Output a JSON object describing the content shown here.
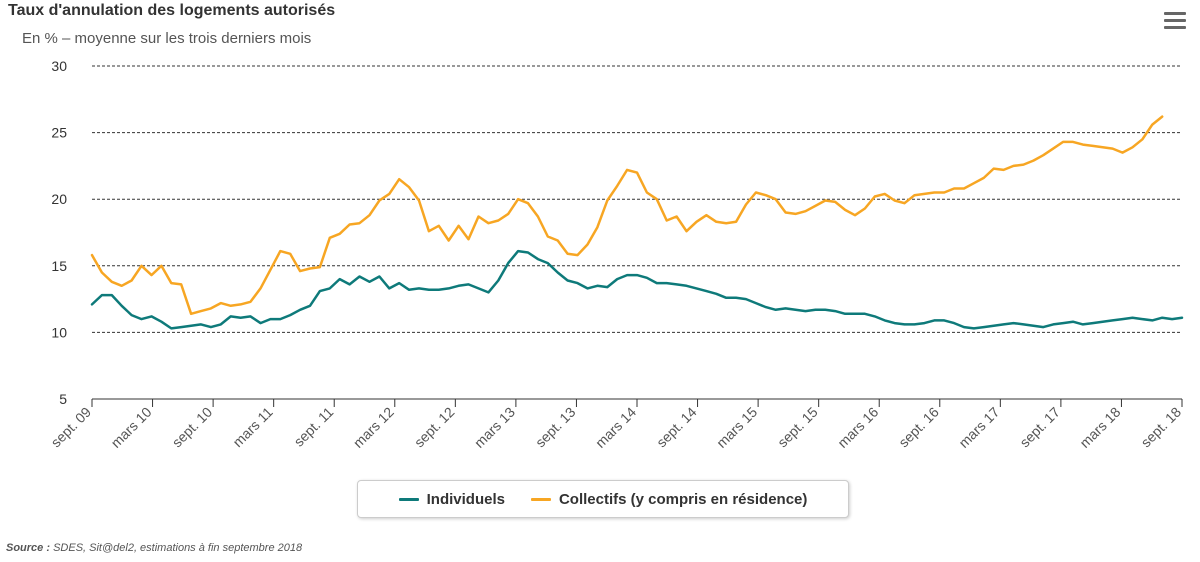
{
  "header": {
    "title": "Taux d'annulation des logements autorisés",
    "subtitle": "En % – moyenne sur les trois derniers mois",
    "menu_icon": "hamburger-menu-icon"
  },
  "colors": {
    "individuels": "#0e7a7a",
    "collectifs": "#f7a623",
    "grid": "#333333"
  },
  "source": {
    "label": "Source :",
    "text": " SDES, Sit@del2, estimations à fin septembre 2018"
  },
  "chart_data": {
    "type": "line",
    "title": "Taux d'annulation des logements autorisés",
    "subtitle": "En % – moyenne sur les trois derniers mois",
    "xlabel": "",
    "ylabel": "",
    "ylim": [
      5,
      30
    ],
    "yticks": [
      5,
      10,
      15,
      20,
      25,
      30
    ],
    "grid": "horizontal dashed",
    "legend_position": "bottom-center",
    "x_tick_labels": [
      "sept. 09",
      "mars 10",
      "sept. 10",
      "mars 11",
      "sept. 11",
      "mars 12",
      "sept. 12",
      "mars 13",
      "sept. 13",
      "mars 14",
      "sept. 14",
      "mars 15",
      "sept. 15",
      "mars 16",
      "sept. 16",
      "mars 17",
      "sept. 17",
      "mars 18",
      "sept. 18"
    ],
    "series": [
      {
        "name": "Individuels",
        "color": "#0e7a7a",
        "values": [
          12.1,
          12.8,
          12.8,
          12.0,
          11.3,
          11.0,
          11.2,
          10.8,
          10.3,
          10.4,
          10.5,
          10.6,
          10.4,
          10.6,
          11.2,
          11.1,
          11.2,
          10.7,
          11.0,
          11.0,
          11.3,
          11.7,
          12.0,
          13.1,
          13.3,
          14.0,
          13.6,
          14.2,
          13.8,
          14.2,
          13.3,
          13.7,
          13.2,
          13.3,
          13.2,
          13.2,
          13.3,
          13.5,
          13.6,
          13.3,
          13.0,
          13.9,
          15.2,
          16.1,
          16.0,
          15.5,
          15.2,
          14.5,
          13.9,
          13.7,
          13.3,
          13.5,
          13.4,
          14.0,
          14.3,
          14.3,
          14.1,
          13.7,
          13.7,
          13.6,
          13.5,
          13.3,
          13.1,
          12.9,
          12.6,
          12.6,
          12.5,
          12.2,
          11.9,
          11.7,
          11.8,
          11.7,
          11.6,
          11.7,
          11.7,
          11.6,
          11.4,
          11.4,
          11.4,
          11.2,
          10.9,
          10.7,
          10.6,
          10.6,
          10.7,
          10.9,
          10.9,
          10.7,
          10.4,
          10.3,
          10.4,
          10.5,
          10.6,
          10.7,
          10.6,
          10.5,
          10.4,
          10.6,
          10.7,
          10.8,
          10.6,
          10.7,
          10.8,
          10.9,
          11.0,
          11.1,
          11.0,
          10.9,
          11.1,
          11.0,
          11.1
        ]
      },
      {
        "name": "Collectifs (y compris en résidence)",
        "color": "#f7a623",
        "values": [
          15.8,
          14.5,
          13.8,
          13.5,
          13.9,
          15.0,
          14.3,
          15.0,
          13.7,
          13.6,
          11.4,
          11.6,
          11.8,
          12.2,
          12.0,
          12.1,
          12.3,
          13.3,
          14.7,
          16.1,
          15.9,
          14.6,
          14.8,
          14.9,
          17.1,
          17.4,
          18.1,
          18.2,
          18.8,
          19.9,
          20.4,
          21.5,
          20.9,
          19.9,
          17.6,
          18.0,
          16.9,
          18.0,
          17.0,
          18.7,
          18.2,
          18.4,
          18.9,
          20.0,
          19.7,
          18.7,
          17.2,
          16.9,
          15.9,
          15.8,
          16.6,
          17.9,
          19.9,
          21.0,
          22.2,
          22.0,
          20.5,
          20.0,
          18.4,
          18.7,
          17.6,
          18.3,
          18.8,
          18.3,
          18.2,
          18.3,
          19.6,
          20.5,
          20.3,
          20.0,
          19.0,
          18.9,
          19.1,
          19.5,
          19.9,
          19.8,
          19.2,
          18.8,
          19.3,
          20.2,
          20.4,
          19.9,
          19.7,
          20.3,
          20.4,
          20.5,
          20.5,
          20.8,
          20.8,
          21.2,
          21.6,
          22.3,
          22.2,
          22.5,
          22.6,
          22.9,
          23.3,
          23.8,
          24.3,
          24.3,
          24.1,
          24.0,
          23.9,
          23.8,
          23.5,
          23.9,
          24.5,
          25.6,
          26.2
        ]
      }
    ]
  }
}
